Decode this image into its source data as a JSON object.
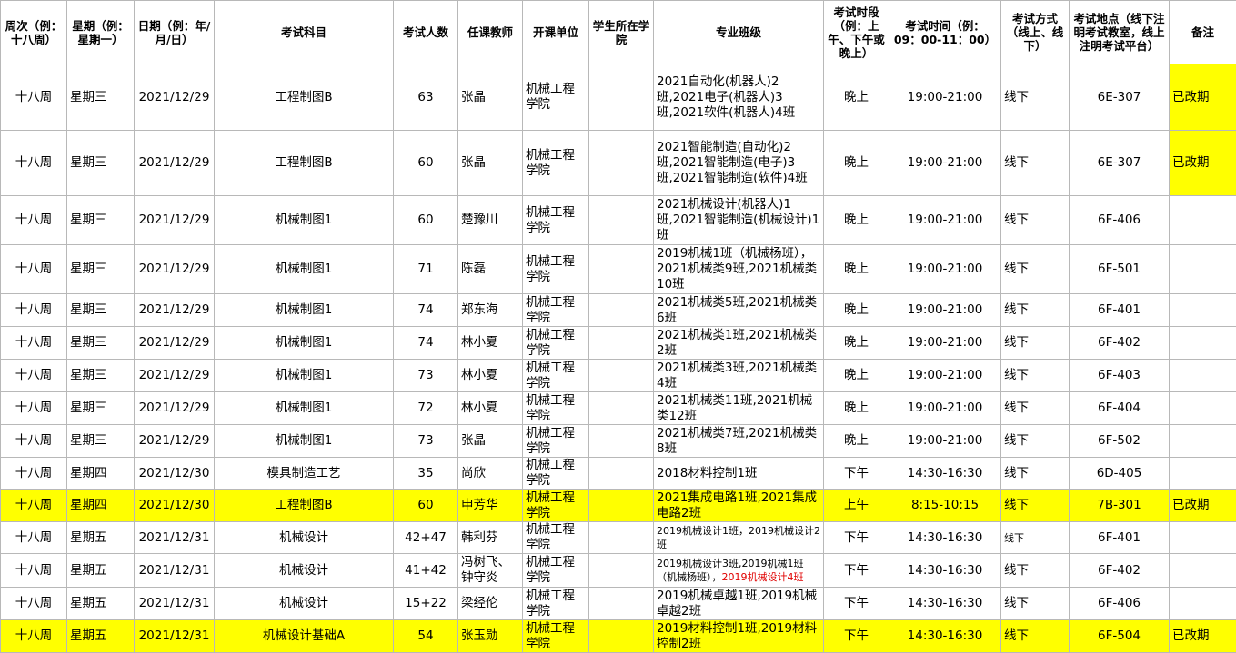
{
  "table": {
    "header": [
      "周次（例：十八周）",
      "星期（例：星期一）",
      "日期（例：年/月/日）",
      "考试科目",
      "考试人数",
      "任课教师",
      "开课单位",
      "学生所在学院",
      "专业班级",
      "考试时段（例：上午、下午或晚上）",
      "考试时间（例：09：00-11：00）",
      "考试方式（线上、线下）",
      "考试地点（线下注明考试教室，线上注明考试平台）",
      "备注"
    ],
    "rows": [
      [
        "十八周",
        "星期三",
        "2021/12/29",
        "工程制图B",
        "63",
        "张晶",
        "机械工程学院",
        null,
        "2021自动化(机器人)2班,2021电子(机器人)3班,2021软件(机器人)4班",
        "晚上",
        "19:00-21:00",
        "线下",
        "6E-307",
        "已改期"
      ],
      [
        "十八周",
        "星期三",
        "2021/12/29",
        "工程制图B",
        "60",
        "张晶",
        "机械工程学院",
        null,
        "2021智能制造(自动化)2班,2021智能制造(电子)3班,2021智能制造(软件)4班",
        "晚上",
        "19:00-21:00",
        "线下",
        "6E-307",
        "已改期"
      ],
      [
        "十八周",
        "星期三",
        "2021/12/29",
        "机械制图1",
        "60",
        "楚豫川",
        "机械工程学院",
        null,
        "2021机械设计(机器人)1班,2021智能制造(机械设计)1班",
        "晚上",
        "19:00-21:00",
        "线下",
        "6F-406",
        null
      ],
      [
        "十八周",
        "星期三",
        "2021/12/29",
        "机械制图1",
        "71",
        "陈磊",
        "机械工程学院",
        null,
        "2019机械1班（机械杨班），2021机械类9班,2021机械类10班",
        "晚上",
        "19:00-21:00",
        "线下",
        "6F-501",
        null
      ],
      [
        "十八周",
        "星期三",
        "2021/12/29",
        "机械制图1",
        "74",
        "郑东海",
        "机械工程学院",
        null,
        "2021机械类5班,2021机械类6班",
        "晚上",
        "19:00-21:00",
        "线下",
        "6F-401",
        null
      ],
      [
        "十八周",
        "星期三",
        "2021/12/29",
        "机械制图1",
        "74",
        "林小夏",
        "机械工程学院",
        null,
        "2021机械类1班,2021机械类2班",
        "晚上",
        "19:00-21:00",
        "线下",
        "6F-402",
        null
      ],
      [
        "十八周",
        "星期三",
        "2021/12/29",
        "机械制图1",
        "73",
        "林小夏",
        "机械工程学院",
        null,
        "2021机械类3班,2021机械类4班",
        "晚上",
        "19:00-21:00",
        "线下",
        "6F-403",
        null
      ],
      [
        "十八周",
        "星期三",
        "2021/12/29",
        "机械制图1",
        "72",
        "林小夏",
        "机械工程学院",
        null,
        "2021机械类11班,2021机械类12班",
        "晚上",
        "19:00-21:00",
        "线下",
        "6F-404",
        null
      ],
      [
        "十八周",
        "星期三",
        "2021/12/29",
        "机械制图1",
        "73",
        "张晶",
        "机械工程学院",
        null,
        "2021机械类7班,2021机械类8班",
        "晚上",
        "19:00-21:00",
        "线下",
        "6F-502",
        null
      ],
      [
        "十八周",
        "星期四",
        "2021/12/30",
        "模具制造工艺",
        "35",
        "尚欣",
        "机械工程学院",
        null,
        "2018材料控制1班",
        "下午",
        "14:30-16:30",
        "线下",
        "6D-405",
        null
      ],
      [
        "十八周",
        "星期四",
        "2021/12/30",
        "工程制图B",
        "60",
        "申芳华",
        "机械工程学院",
        null,
        "2021集成电路1班,2021集成电路2班",
        "上午",
        "8:15-10:15",
        "线下",
        "7B-301",
        "已改期"
      ],
      [
        "十八周",
        "星期五",
        "2021/12/31",
        "机械设计",
        "42+47",
        "韩利芬",
        "机械工程学院",
        null,
        "2019机械设计1班，2019机械设计2班",
        "下午",
        "14:30-16:30",
        "线下",
        "6F-401",
        null
      ],
      [
        "十八周",
        "星期五",
        "2021/12/31",
        "机械设计",
        "41+42",
        "冯树飞、钟守炎",
        "机械工程学院",
        null,
        [
          "2019机械设计3班,2019机械1班（机械杨班），",
          "2019机械设计4班"
        ],
        "下午",
        "14:30-16:30",
        "线下",
        "6F-402",
        null
      ],
      [
        "十八周",
        "星期五",
        "2021/12/31",
        "机械设计",
        "15+22",
        "梁经伦",
        "机械工程学院",
        null,
        "2019机械卓越1班,2019机械卓越2班",
        "下午",
        "14:30-16:30",
        "线下",
        "6F-406",
        null
      ],
      [
        "十八周",
        "星期五",
        "2021/12/31",
        "机械设计基础A",
        "54",
        "张玉勋",
        "机械工程学院",
        null,
        "2019材料控制1班,2019材料控制2班",
        "下午",
        "14:30-16:30",
        "线下",
        "6F-504",
        "已改期"
      ]
    ],
    "highlight_color": "#ffff00",
    "highlighted_rows": [
      10,
      14
    ],
    "highlighted_cells": [
      [
        0,
        13
      ],
      [
        1,
        13
      ]
    ]
  }
}
